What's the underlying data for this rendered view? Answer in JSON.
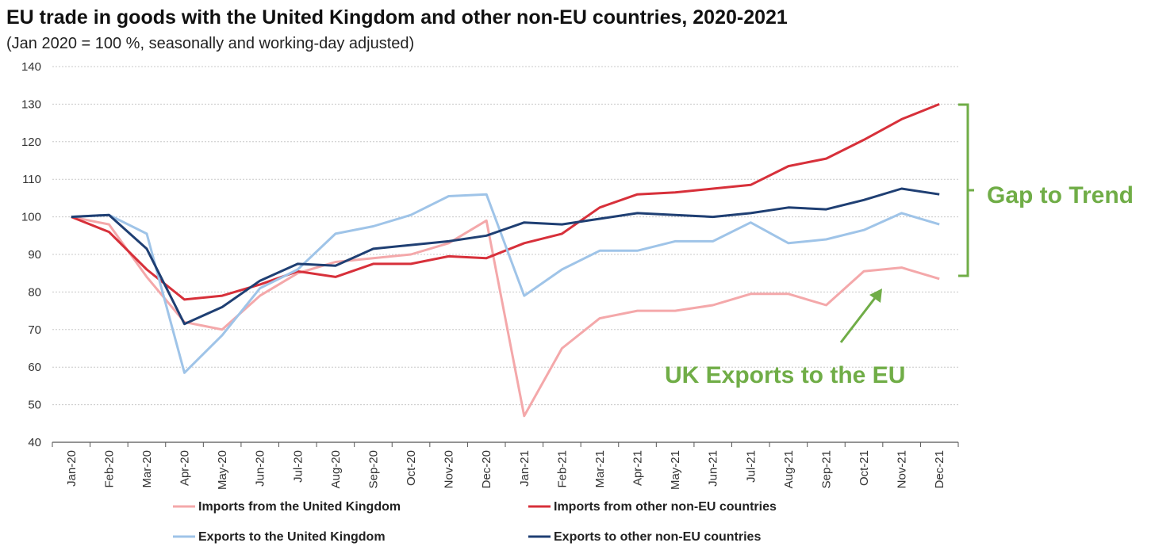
{
  "header": {
    "title": "EU trade in goods with the United Kingdom and other non-EU countries, 2020-2021",
    "subtitle": "(Jan 2020 = 100 %, seasonally and working-day adjusted)"
  },
  "colors": {
    "imports_uk": "#f4a8aa",
    "imports_non_eu": "#d7303a",
    "exports_uk": "#9fc4e8",
    "exports_non_eu": "#1f3f73",
    "annotation": "#70ad47",
    "grid": "#c8c8c8"
  },
  "annotations": {
    "gap_label": "Gap to Trend",
    "uk_exports_label": "UK Exports to the EU"
  },
  "chart_data": {
    "type": "line",
    "title": "EU trade in goods with the United Kingdom and other non-EU countries, 2020-2021",
    "subtitle": "(Jan 2020 = 100 %, seasonally and working-day adjusted)",
    "xlabel": "",
    "ylabel": "",
    "ylim": [
      40,
      140
    ],
    "yticks": [
      40,
      50,
      60,
      70,
      80,
      90,
      100,
      110,
      120,
      130,
      140
    ],
    "grid": true,
    "legend_position": "bottom",
    "categories": [
      "Jan-20",
      "Feb-20",
      "Mar-20",
      "Apr-20",
      "May-20",
      "Jun-20",
      "Jul-20",
      "Aug-20",
      "Sep-20",
      "Oct-20",
      "Nov-20",
      "Dec-20",
      "Jan-21",
      "Feb-21",
      "Mar-21",
      "Apr-21",
      "May-21",
      "Jun-21",
      "Jul-21",
      "Aug-21",
      "Sep-21",
      "Oct-21",
      "Nov-21",
      "Dec-21"
    ],
    "series": [
      {
        "name": "Imports from the United Kingdom",
        "color_key": "imports_uk",
        "values": [
          100,
          98,
          84,
          72,
          70,
          79,
          85,
          88,
          89,
          90,
          93,
          99,
          47,
          65,
          73,
          75,
          75,
          76.5,
          79.5,
          79.5,
          76.5,
          85.5,
          86.5,
          83.5
        ]
      },
      {
        "name": "Imports from other non-EU countries",
        "color_key": "imports_non_eu",
        "values": [
          100,
          96,
          86,
          78,
          79,
          82,
          85.5,
          84,
          87.5,
          87.5,
          89.5,
          89,
          93,
          95.5,
          102.5,
          106,
          106.5,
          107.5,
          108.5,
          113.5,
          115.5,
          120.5,
          126,
          130
        ]
      },
      {
        "name": "Exports to the United Kingdom",
        "color_key": "exports_uk",
        "values": [
          100,
          100.5,
          95.5,
          58.5,
          68.5,
          81,
          86,
          95.5,
          97.5,
          100.5,
          105.5,
          106,
          79,
          86,
          91,
          91,
          93.5,
          93.5,
          98.5,
          93,
          94,
          96.5,
          101,
          98
        ]
      },
      {
        "name": "Exports to other non-EU countries",
        "color_key": "exports_non_eu",
        "values": [
          100,
          100.5,
          91.5,
          71.5,
          76,
          83,
          87.5,
          87,
          91.5,
          92.5,
          93.5,
          95,
          98.5,
          98,
          99.5,
          101,
          100.5,
          100,
          101,
          102.5,
          102,
          104.5,
          107.5,
          106
        ]
      }
    ]
  }
}
